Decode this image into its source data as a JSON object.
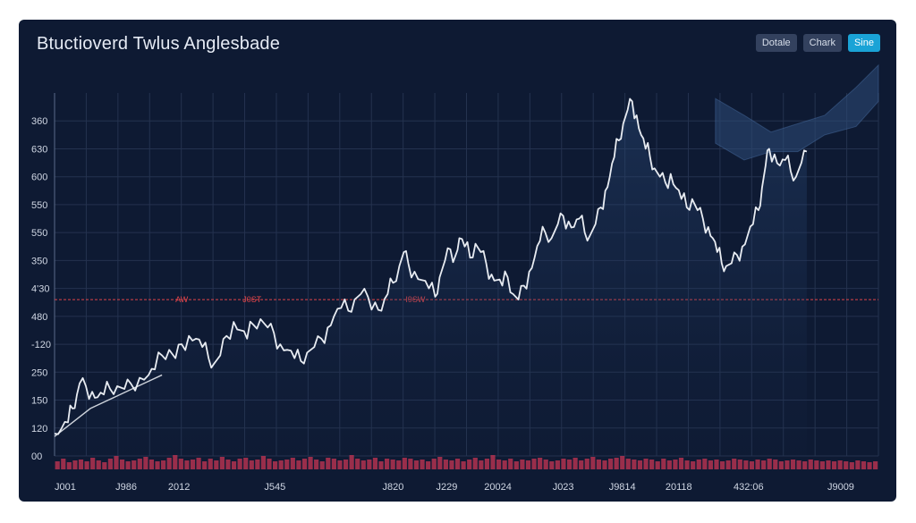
{
  "header": {
    "title": "Btuctioverd Twlus Anglesbade",
    "buttons": [
      {
        "label": "Dotale",
        "active": false
      },
      {
        "label": "Chark",
        "active": false
      },
      {
        "label": "Sine",
        "active": true
      }
    ]
  },
  "colors": {
    "background": "#0e1a33",
    "grid": "#24324f",
    "line": "#e8ecf2",
    "ma_line": "#f0f3f8",
    "reference": "#e0454a",
    "volume": "#b23350",
    "band_fill": "#2d4c78"
  },
  "chart_data": {
    "type": "line",
    "title": "Btuctioverd Twlus Anglesbade",
    "y_tick_labels": [
      "360",
      "630",
      "600",
      "550",
      "550",
      "350",
      "4'30",
      "480",
      "-120",
      "250",
      "150",
      "120",
      "00"
    ],
    "x_tick_labels": [
      {
        "label": "J001",
        "pos": 0
      },
      {
        "label": "J986",
        "pos": 80
      },
      {
        "label": "2012",
        "pos": 139
      },
      {
        "label": "J545",
        "pos": 246
      },
      {
        "label": "J820",
        "pos": 378
      },
      {
        "label": "J229",
        "pos": 438
      },
      {
        "label": "20024",
        "pos": 495
      },
      {
        "label": "J023",
        "pos": 568
      },
      {
        "label": "J9814",
        "pos": 634
      },
      {
        "label": "20118",
        "pos": 697
      },
      {
        "label": "432:06",
        "pos": 775
      },
      {
        "label": "J9009",
        "pos": 878
      }
    ],
    "x_range": [
      0,
      920
    ],
    "y_range": [
      0,
      13
    ],
    "reference_line": {
      "value": 5.6,
      "labels": [
        {
          "text": "AW",
          "pos": 135
        },
        {
          "text": "J0ST",
          "pos": 210
        },
        {
          "text": "I9SW",
          "pos": 392
        }
      ]
    },
    "series": [
      {
        "name": "price",
        "points": [
          [
            0,
            0.8
          ],
          [
            8,
            1.0
          ],
          [
            15,
            1.2
          ],
          [
            20,
            1.7
          ],
          [
            25,
            2.2
          ],
          [
            28,
            2.6
          ],
          [
            35,
            2.5
          ],
          [
            42,
            2.3
          ],
          [
            48,
            2.1
          ],
          [
            55,
            2.2
          ],
          [
            62,
            2.4
          ],
          [
            70,
            2.5
          ],
          [
            78,
            2.4
          ],
          [
            85,
            2.6
          ],
          [
            95,
            2.8
          ],
          [
            105,
            2.9
          ],
          [
            112,
            3.1
          ],
          [
            120,
            3.6
          ],
          [
            128,
            3.8
          ],
          [
            135,
            3.5
          ],
          [
            142,
            4.0
          ],
          [
            150,
            4.3
          ],
          [
            158,
            4.2
          ],
          [
            165,
            3.9
          ],
          [
            172,
            3.5
          ],
          [
            178,
            3.3
          ],
          [
            185,
            3.6
          ],
          [
            192,
            4.3
          ],
          [
            200,
            4.8
          ],
          [
            208,
            4.5
          ],
          [
            215,
            4.2
          ],
          [
            222,
            4.7
          ],
          [
            230,
            4.9
          ],
          [
            238,
            4.6
          ],
          [
            245,
            4.4
          ],
          [
            252,
            4.0
          ],
          [
            260,
            3.8
          ],
          [
            268,
            3.5
          ],
          [
            275,
            3.4
          ],
          [
            282,
            3.7
          ],
          [
            290,
            3.9
          ],
          [
            298,
            4.2
          ],
          [
            305,
            4.6
          ],
          [
            312,
            5.0
          ],
          [
            320,
            5.3
          ],
          [
            328,
            5.2
          ],
          [
            335,
            5.6
          ],
          [
            342,
            5.8
          ],
          [
            350,
            5.7
          ],
          [
            358,
            5.5
          ],
          [
            365,
            5.2
          ],
          [
            372,
            5.8
          ],
          [
            378,
            6.2
          ],
          [
            385,
            6.8
          ],
          [
            390,
            7.3
          ],
          [
            395,
            6.9
          ],
          [
            402,
            6.6
          ],
          [
            410,
            6.3
          ],
          [
            418,
            6.0
          ],
          [
            425,
            5.7
          ],
          [
            430,
            6.4
          ],
          [
            436,
            7.0
          ],
          [
            442,
            7.4
          ],
          [
            448,
            7.2
          ],
          [
            452,
            7.8
          ],
          [
            458,
            7.5
          ],
          [
            464,
            7.1
          ],
          [
            470,
            7.6
          ],
          [
            476,
            7.3
          ],
          [
            482,
            6.9
          ],
          [
            488,
            6.5
          ],
          [
            494,
            6.3
          ],
          [
            500,
            6.1
          ],
          [
            506,
            6.4
          ],
          [
            512,
            5.8
          ],
          [
            518,
            5.6
          ],
          [
            524,
            6.1
          ],
          [
            530,
            6.6
          ],
          [
            536,
            7.1
          ],
          [
            542,
            7.7
          ],
          [
            548,
            8.0
          ],
          [
            555,
            7.8
          ],
          [
            562,
            8.3
          ],
          [
            568,
            8.6
          ],
          [
            574,
            8.4
          ],
          [
            580,
            8.2
          ],
          [
            586,
            8.5
          ],
          [
            592,
            8.0
          ],
          [
            598,
            7.9
          ],
          [
            604,
            8.3
          ],
          [
            610,
            8.9
          ],
          [
            615,
            9.5
          ],
          [
            620,
            10.0
          ],
          [
            625,
            10.7
          ],
          [
            630,
            11.3
          ],
          [
            635,
            11.9
          ],
          [
            640,
            12.4
          ],
          [
            645,
            12.7
          ],
          [
            650,
            12.2
          ],
          [
            655,
            11.5
          ],
          [
            660,
            11.0
          ],
          [
            665,
            10.7
          ],
          [
            670,
            10.3
          ],
          [
            676,
            10.0
          ],
          [
            682,
            9.8
          ],
          [
            688,
            10.1
          ],
          [
            694,
            9.6
          ],
          [
            700,
            9.2
          ],
          [
            706,
            8.9
          ],
          [
            712,
            9.2
          ],
          [
            718,
            8.8
          ],
          [
            724,
            8.5
          ],
          [
            730,
            8.2
          ],
          [
            735,
            7.8
          ],
          [
            740,
            7.3
          ],
          [
            745,
            6.9
          ],
          [
            750,
            6.8
          ],
          [
            756,
            6.9
          ],
          [
            762,
            7.2
          ],
          [
            768,
            7.5
          ],
          [
            774,
            7.9
          ],
          [
            780,
            8.3
          ],
          [
            786,
            8.8
          ],
          [
            790,
            9.6
          ],
          [
            794,
            10.4
          ],
          [
            798,
            11.0
          ],
          [
            804,
            10.8
          ],
          [
            810,
            10.4
          ],
          [
            816,
            10.6
          ],
          [
            822,
            10.2
          ],
          [
            828,
            10.0
          ],
          [
            834,
            10.5
          ],
          [
            840,
            10.9
          ]
        ]
      },
      {
        "name": "moving-average",
        "points": [
          [
            0,
            0.7
          ],
          [
            20,
            1.2
          ],
          [
            40,
            1.7
          ],
          [
            60,
            2.0
          ],
          [
            80,
            2.3
          ],
          [
            100,
            2.6
          ],
          [
            120,
            2.9
          ]
        ]
      }
    ],
    "band": [
      {
        "x": 738,
        "top": 12.8,
        "bottom": 11.2
      },
      {
        "x": 770,
        "top": 12.2,
        "bottom": 10.6
      },
      {
        "x": 800,
        "top": 11.6,
        "bottom": 10.9
      },
      {
        "x": 830,
        "top": 11.9,
        "bottom": 10.9
      },
      {
        "x": 860,
        "top": 12.2,
        "bottom": 11.5
      },
      {
        "x": 895,
        "top": 13.2,
        "bottom": 11.8
      },
      {
        "x": 920,
        "top": 14.0,
        "bottom": 12.7
      }
    ],
    "volume": [
      9,
      12,
      8,
      10,
      11,
      9,
      13,
      10,
      8,
      12,
      15,
      11,
      9,
      10,
      12,
      14,
      11,
      9,
      10,
      13,
      16,
      12,
      10,
      11,
      13,
      9,
      12,
      10,
      14,
      11,
      9,
      12,
      13,
      10,
      11,
      15,
      12,
      9,
      10,
      11,
      13,
      10,
      12,
      14,
      11,
      9,
      13,
      12,
      10,
      11,
      16,
      12,
      10,
      11,
      13,
      9,
      12,
      11,
      10,
      13,
      12,
      10,
      11,
      9,
      12,
      14,
      11,
      10,
      12,
      9,
      11,
      13,
      10,
      12,
      16,
      11,
      10,
      12,
      9,
      11,
      10,
      12,
      13,
      11,
      9,
      10,
      12,
      11,
      13,
      10,
      12,
      14,
      11,
      10,
      12,
      13,
      15,
      12,
      11,
      10,
      12,
      11,
      9,
      12,
      10,
      11,
      13,
      10,
      9,
      11,
      12,
      10,
      11,
      9,
      10,
      12,
      11,
      10,
      9,
      11,
      10,
      12,
      11,
      9,
      10,
      11,
      10,
      9,
      11,
      10,
      9,
      10,
      9,
      10,
      9,
      8,
      10,
      9,
      8,
      9
    ]
  }
}
